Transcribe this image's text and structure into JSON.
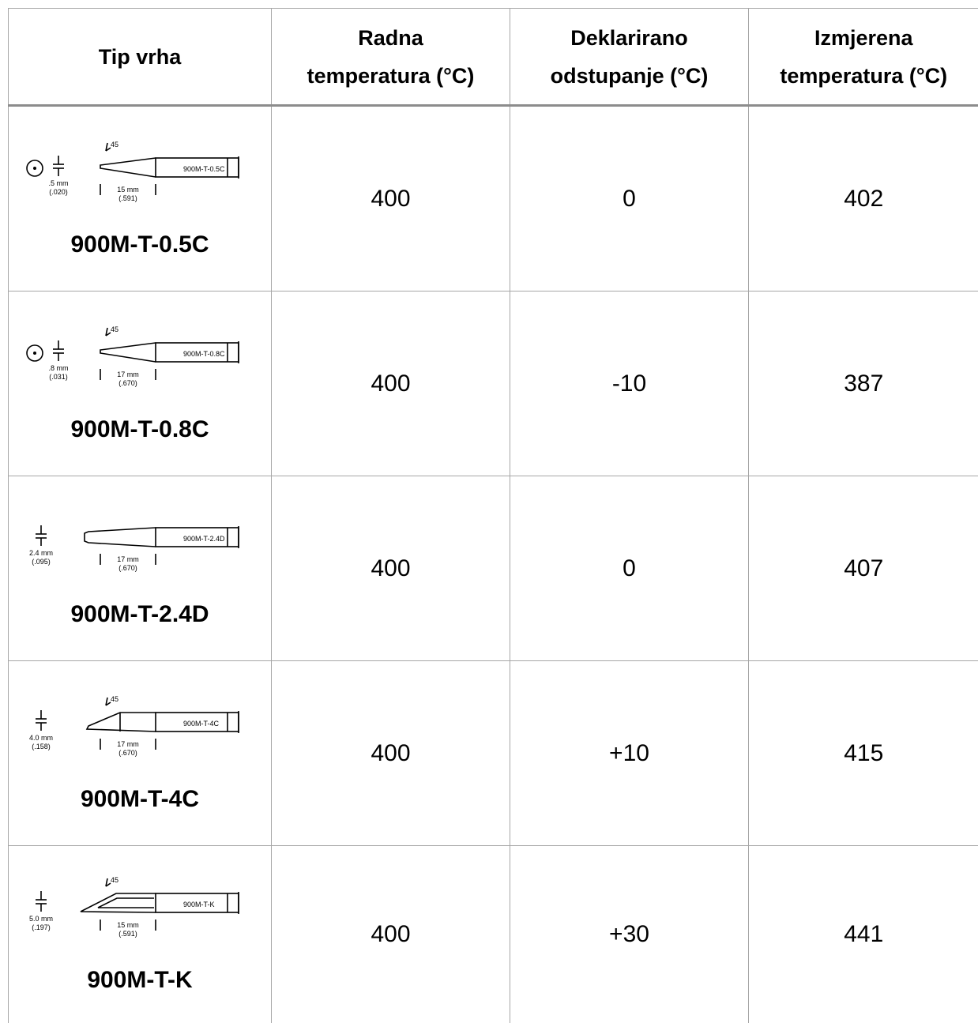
{
  "header": {
    "col1": "Tip vrha",
    "col2": [
      "Radna",
      "temperatura (°C)"
    ],
    "col3": [
      "Deklarirano",
      "odstupanje (°C)"
    ],
    "col4": [
      "Izmjerena",
      "temperatura (°C)"
    ]
  },
  "rows": [
    {
      "tip_name": "900M-T-0.5C",
      "drawing": {
        "kind": "conical",
        "label": "900M-T-0.5C",
        "dim": ".5 mm",
        "dim_in": "(.020)",
        "len": "15 mm",
        "len_in": "(.591)",
        "angle": "45"
      },
      "working_temp": "400",
      "declared_deviation": "0",
      "measured_temp": "402"
    },
    {
      "tip_name": "900M-T-0.8C",
      "drawing": {
        "kind": "conical",
        "label": "900M-T-0.8C",
        "dim": ".8 mm",
        "dim_in": "(.031)",
        "len": "17 mm",
        "len_in": "(.670)",
        "angle": "45"
      },
      "working_temp": "400",
      "declared_deviation": "-10",
      "measured_temp": "387"
    },
    {
      "tip_name": "900M-T-2.4D",
      "drawing": {
        "kind": "chisel",
        "label": "900M-T-2.4D",
        "dim": "2.4 mm",
        "dim_in": "(.095)",
        "len": "17 mm",
        "len_in": "(.670)",
        "angle": ""
      },
      "working_temp": "400",
      "declared_deviation": "0",
      "measured_temp": "407"
    },
    {
      "tip_name": "900M-T-4C",
      "drawing": {
        "kind": "bevel",
        "label": "900M-T-4C",
        "dim": "4.0 mm",
        "dim_in": "(.158)",
        "len": "17 mm",
        "len_in": "(.670)",
        "angle": "45"
      },
      "working_temp": "400",
      "declared_deviation": "+10",
      "measured_temp": "415"
    },
    {
      "tip_name": "900M-T-K",
      "drawing": {
        "kind": "knife",
        "label": "900M-T-K",
        "dim": "5.0 mm",
        "dim_in": "(.197)",
        "len": "15 mm",
        "len_in": "(.591)",
        "angle": "45"
      },
      "working_temp": "400",
      "declared_deviation": "+30",
      "measured_temp": "441"
    }
  ]
}
